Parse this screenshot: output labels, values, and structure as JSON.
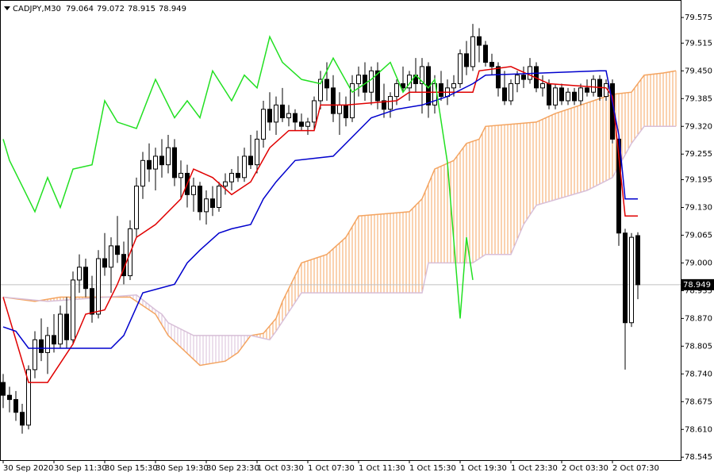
{
  "chart_data": {
    "type": "candlestick",
    "symbol": "CADJPY,M30",
    "xlim": [
      -0.5,
      106.75
    ],
    "ylim": [
      78.538,
      79.616
    ],
    "xticks": [
      {
        "value": 0,
        "label": "30 Sep 2020"
      },
      {
        "value": 8,
        "label": "30 Sep 11:30"
      },
      {
        "value": 16,
        "label": "30 Sep 15:30"
      },
      {
        "value": 24,
        "label": "30 Sep 19:30"
      },
      {
        "value": 32,
        "label": "30 Sep 23:30"
      },
      {
        "value": 40,
        "label": "1 Oct 03:30"
      },
      {
        "value": 48,
        "label": "1 Oct 07:30"
      },
      {
        "value": 56,
        "label": "1 Oct 11:30"
      },
      {
        "value": 64,
        "label": "1 Oct 15:30"
      },
      {
        "value": 72,
        "label": "1 Oct 19:30"
      },
      {
        "value": 80,
        "label": "1 Oct 23:30"
      },
      {
        "value": 88,
        "label": "2 Oct 03:30"
      },
      {
        "value": 96,
        "label": "2 Oct 07:30"
      }
    ],
    "yticks": [
      {
        "value": 79.575,
        "label": "79.575"
      },
      {
        "value": 79.515,
        "label": "79.515"
      },
      {
        "value": 79.45,
        "label": "79.450"
      },
      {
        "value": 79.385,
        "label": "79.385"
      },
      {
        "value": 79.32,
        "label": "79.320"
      },
      {
        "value": 79.255,
        "label": "79.255"
      },
      {
        "value": 79.195,
        "label": "79.195"
      },
      {
        "value": 79.13,
        "label": "79.130"
      },
      {
        "value": 79.065,
        "label": "79.065"
      },
      {
        "value": 79.0,
        "label": "79.000"
      },
      {
        "value": 78.935,
        "label": "78.935"
      },
      {
        "value": 78.87,
        "label": "78.870"
      },
      {
        "value": 78.805,
        "label": "78.805"
      },
      {
        "value": 78.74,
        "label": "78.740"
      },
      {
        "value": 78.675,
        "label": "78.675"
      },
      {
        "value": 78.61,
        "label": "78.610"
      },
      {
        "value": 78.545,
        "label": "78.545"
      }
    ],
    "ohlc": [
      [
        78.72,
        78.74,
        78.66,
        78.69
      ],
      [
        78.69,
        78.71,
        78.65,
        78.68
      ],
      [
        78.68,
        78.7,
        78.63,
        78.65
      ],
      [
        78.65,
        78.67,
        78.6,
        78.62
      ],
      [
        78.62,
        78.76,
        78.61,
        78.75
      ],
      [
        78.75,
        78.84,
        78.73,
        78.82
      ],
      [
        78.82,
        78.87,
        78.77,
        78.79
      ],
      [
        78.79,
        78.85,
        78.74,
        78.83
      ],
      [
        78.83,
        78.88,
        78.79,
        78.81
      ],
      [
        78.81,
        78.9,
        78.8,
        78.88
      ],
      [
        78.88,
        78.92,
        78.8,
        78.82
      ],
      [
        78.82,
        78.98,
        78.81,
        78.96
      ],
      [
        78.96,
        79.02,
        78.93,
        78.99
      ],
      [
        78.99,
        79.01,
        78.92,
        78.94
      ],
      [
        78.94,
        78.97,
        78.86,
        78.88
      ],
      [
        78.88,
        79.03,
        78.87,
        79.01
      ],
      [
        79.01,
        79.07,
        78.97,
        78.99
      ],
      [
        78.99,
        79.06,
        78.93,
        79.04
      ],
      [
        79.04,
        79.11,
        79.0,
        79.02
      ],
      [
        79.02,
        79.05,
        78.95,
        78.97
      ],
      [
        78.97,
        79.1,
        78.96,
        79.08
      ],
      [
        79.08,
        79.2,
        79.06,
        79.18
      ],
      [
        79.18,
        79.26,
        79.15,
        79.24
      ],
      [
        79.24,
        79.28,
        79.19,
        79.22
      ],
      [
        79.22,
        79.27,
        79.17,
        79.25
      ],
      [
        79.25,
        79.29,
        79.2,
        79.23
      ],
      [
        79.23,
        79.3,
        79.21,
        79.27
      ],
      [
        79.27,
        79.29,
        79.18,
        79.2
      ],
      [
        79.2,
        79.24,
        79.15,
        79.21
      ],
      [
        79.21,
        79.23,
        79.13,
        79.16
      ],
      [
        79.16,
        79.2,
        79.12,
        79.18
      ],
      [
        79.18,
        79.19,
        79.1,
        79.12
      ],
      [
        79.12,
        79.17,
        79.09,
        79.15
      ],
      [
        79.15,
        79.18,
        79.11,
        79.13
      ],
      [
        79.13,
        79.19,
        79.12,
        79.18
      ],
      [
        79.18,
        79.21,
        79.16,
        79.19
      ],
      [
        79.19,
        79.22,
        79.17,
        79.21
      ],
      [
        79.21,
        79.25,
        79.19,
        79.2
      ],
      [
        79.2,
        79.27,
        79.19,
        79.25
      ],
      [
        79.25,
        79.3,
        79.22,
        79.23
      ],
      [
        79.23,
        79.31,
        79.21,
        79.29
      ],
      [
        79.29,
        79.38,
        79.27,
        79.36
      ],
      [
        79.36,
        79.4,
        79.31,
        79.33
      ],
      [
        79.33,
        79.39,
        79.3,
        79.37
      ],
      [
        79.37,
        79.41,
        79.33,
        79.34
      ],
      [
        79.34,
        79.37,
        79.32,
        79.35
      ],
      [
        79.35,
        79.36,
        79.31,
        79.33
      ],
      [
        79.33,
        79.35,
        79.31,
        79.32
      ],
      [
        79.32,
        79.34,
        79.3,
        79.33
      ],
      [
        79.33,
        79.39,
        79.31,
        79.38
      ],
      [
        79.38,
        79.45,
        79.36,
        79.43
      ],
      [
        79.43,
        79.47,
        79.38,
        79.41
      ],
      [
        79.41,
        79.44,
        79.33,
        79.35
      ],
      [
        79.35,
        79.4,
        79.3,
        79.37
      ],
      [
        79.37,
        79.39,
        79.32,
        79.34
      ],
      [
        79.34,
        79.44,
        79.33,
        79.42
      ],
      [
        79.42,
        79.46,
        79.39,
        79.44
      ],
      [
        79.44,
        79.47,
        79.38,
        79.4
      ],
      [
        79.4,
        79.46,
        79.37,
        79.45
      ],
      [
        79.45,
        79.47,
        79.36,
        79.38
      ],
      [
        79.38,
        79.42,
        79.34,
        79.36
      ],
      [
        79.36,
        79.4,
        79.34,
        79.39
      ],
      [
        79.39,
        79.43,
        79.37,
        79.42
      ],
      [
        79.42,
        79.46,
        79.4,
        79.41
      ],
      [
        79.41,
        79.45,
        79.38,
        79.44
      ],
      [
        79.44,
        79.48,
        79.4,
        79.42
      ],
      [
        79.42,
        79.48,
        79.35,
        79.46
      ],
      [
        79.46,
        79.47,
        79.34,
        79.37
      ],
      [
        79.37,
        79.44,
        79.35,
        79.42
      ],
      [
        79.42,
        79.45,
        79.38,
        79.39
      ],
      [
        79.39,
        79.43,
        79.37,
        79.41
      ],
      [
        79.41,
        79.44,
        79.39,
        79.42
      ],
      [
        79.42,
        79.5,
        79.41,
        79.49
      ],
      [
        79.49,
        79.52,
        79.44,
        79.46
      ],
      [
        79.46,
        79.56,
        79.45,
        79.53
      ],
      [
        79.53,
        79.55,
        79.47,
        79.51
      ],
      [
        79.51,
        79.52,
        79.46,
        79.47
      ],
      [
        79.47,
        79.49,
        79.44,
        79.46
      ],
      [
        79.46,
        79.47,
        79.39,
        79.41
      ],
      [
        79.41,
        79.45,
        79.37,
        79.38
      ],
      [
        79.38,
        79.43,
        79.37,
        79.42
      ],
      [
        79.42,
        79.45,
        79.4,
        79.44
      ],
      [
        79.44,
        79.46,
        79.41,
        79.43
      ],
      [
        79.43,
        79.48,
        79.42,
        79.46
      ],
      [
        79.46,
        79.47,
        79.4,
        79.41
      ],
      [
        79.41,
        79.44,
        79.39,
        79.42
      ],
      [
        79.42,
        79.43,
        79.36,
        79.37
      ],
      [
        79.37,
        79.42,
        79.36,
        79.41
      ],
      [
        79.41,
        79.42,
        79.37,
        79.38
      ],
      [
        79.38,
        79.41,
        79.37,
        79.4
      ],
      [
        79.4,
        79.41,
        79.37,
        79.38
      ],
      [
        79.38,
        79.42,
        79.37,
        79.41
      ],
      [
        79.41,
        79.43,
        79.39,
        79.4
      ],
      [
        79.4,
        79.44,
        79.39,
        79.43
      ],
      [
        79.43,
        79.44,
        79.38,
        79.39
      ],
      [
        79.39,
        79.43,
        79.38,
        79.42
      ],
      [
        79.42,
        79.43,
        79.28,
        79.29
      ],
      [
        79.29,
        79.3,
        79.04,
        79.07
      ],
      [
        79.07,
        79.08,
        78.75,
        78.86
      ],
      [
        78.86,
        79.07,
        78.85,
        79.06
      ],
      [
        79.064,
        79.072,
        78.915,
        78.949
      ]
    ],
    "cloud": {
      "up_color": "#f4a460",
      "down_color": "#d8bfd8",
      "span_a": {
        "color": "#f4a460",
        "x": [
          0,
          5,
          9,
          15,
          20,
          24,
          26,
          31,
          35,
          37,
          39,
          41,
          43,
          44,
          47,
          51,
          54,
          56,
          64,
          66,
          68,
          71,
          73,
          75,
          76,
          84,
          87,
          93,
          95,
          96,
          99,
          101,
          104,
          106
        ],
        "values": [
          78.92,
          78.91,
          78.92,
          78.92,
          78.92,
          78.88,
          78.83,
          78.76,
          78.77,
          78.79,
          78.83,
          78.835,
          78.87,
          78.91,
          79.0,
          79.02,
          79.06,
          79.11,
          79.12,
          79.15,
          79.22,
          79.24,
          79.28,
          79.29,
          79.32,
          79.33,
          79.35,
          79.38,
          79.39,
          79.395,
          79.4,
          79.44,
          79.445,
          79.45
        ]
      },
      "span_b": {
        "color": "#d8bfd8",
        "x": [
          0,
          7,
          21,
          24,
          25,
          26,
          30,
          39,
          42,
          43,
          47,
          66,
          67,
          74,
          76,
          80,
          82,
          84,
          92,
          96,
          99,
          101,
          106
        ],
        "values": [
          78.92,
          78.91,
          78.925,
          78.89,
          78.88,
          78.86,
          78.83,
          78.83,
          78.82,
          78.84,
          78.93,
          78.93,
          79.0,
          79.0,
          79.02,
          79.02,
          79.09,
          79.135,
          79.17,
          79.2,
          79.28,
          79.32,
          79.32
        ]
      }
    },
    "lines": [
      {
        "color": "#e00000",
        "x": [
          0,
          4,
          7,
          11,
          13,
          16,
          18,
          21,
          24,
          28,
          30,
          33,
          36,
          39,
          42,
          45,
          49,
          50,
          54,
          62,
          64,
          74,
          75,
          80,
          86,
          95,
          96,
          98,
          100
        ],
        "values": [
          78.92,
          78.72,
          78.72,
          78.81,
          78.88,
          78.89,
          78.95,
          79.06,
          79.09,
          79.15,
          79.22,
          79.2,
          79.16,
          79.19,
          79.27,
          79.31,
          79.31,
          79.37,
          79.37,
          79.38,
          79.4,
          79.4,
          79.45,
          79.46,
          79.42,
          79.41,
          79.39,
          79.11,
          79.11
        ]
      },
      {
        "color": "#0000cd",
        "x": [
          0,
          2,
          4,
          17,
          19,
          22,
          27,
          29,
          31,
          34,
          36,
          39,
          41,
          43,
          46,
          52,
          58,
          62,
          66,
          70,
          74,
          76,
          94,
          95,
          97,
          98,
          100
        ],
        "values": [
          78.85,
          78.84,
          78.8,
          78.8,
          78.83,
          78.93,
          78.95,
          79.0,
          79.03,
          79.07,
          79.08,
          79.09,
          79.15,
          79.19,
          79.24,
          79.25,
          79.34,
          79.36,
          79.37,
          79.39,
          79.42,
          79.44,
          79.45,
          79.45,
          79.3,
          79.15,
          79.15
        ]
      },
      {
        "color": "#22e022",
        "x": [
          0,
          1,
          3,
          5,
          7,
          9,
          11,
          14,
          16,
          18,
          21,
          24,
          27,
          29,
          31,
          33,
          36,
          38,
          40,
          42,
          44,
          47,
          50,
          52,
          55,
          58,
          61,
          63,
          65,
          67,
          68,
          70,
          72,
          73,
          74
        ],
        "values": [
          79.29,
          79.24,
          79.18,
          79.12,
          79.2,
          79.13,
          79.22,
          79.23,
          79.38,
          79.33,
          79.315,
          79.43,
          79.34,
          79.38,
          79.34,
          79.45,
          79.38,
          79.44,
          79.41,
          79.53,
          79.47,
          79.43,
          79.42,
          79.48,
          79.4,
          79.43,
          79.47,
          79.4,
          79.44,
          79.41,
          79.43,
          79.235,
          78.87,
          79.06,
          78.96
        ]
      }
    ],
    "price_line_color": "#c0c0c0"
  }
}
